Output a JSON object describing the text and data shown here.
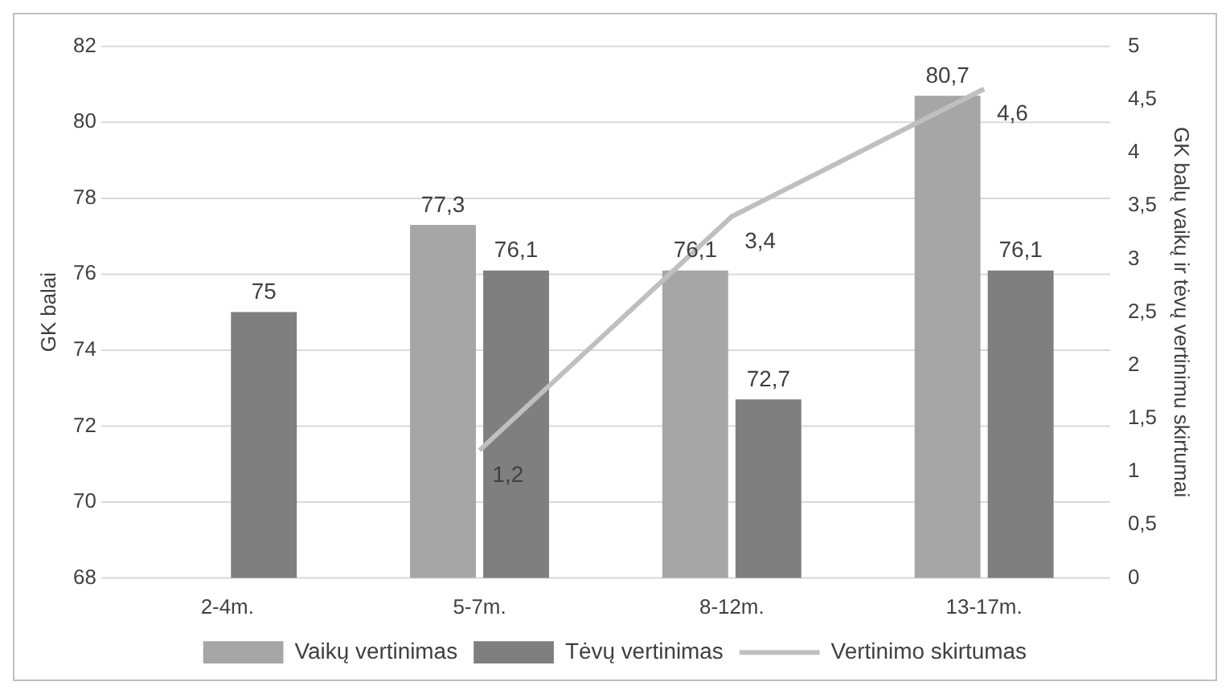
{
  "chart_data": {
    "type": "bar",
    "categories": [
      "2-4m.",
      "5-7m.",
      "8-12m.",
      "13-17m."
    ],
    "series": [
      {
        "name": "Vaikų vertinimas",
        "color": "#a6a6a6",
        "values": [
          null,
          77.3,
          76.1,
          80.7
        ],
        "value_labels": [
          null,
          "77,3",
          "76,1",
          "80,7"
        ]
      },
      {
        "name": "Tėvų vertinimas",
        "color": "#7f7f7f",
        "values": [
          75,
          76.1,
          72.7,
          76.1
        ],
        "value_labels": [
          "75",
          "76,1",
          "72,7",
          "76,1"
        ]
      },
      {
        "name": "Vertinimo skirtumas",
        "type": "line",
        "axis": "y2",
        "color": "#bfbfbf",
        "values": [
          null,
          1.2,
          3.4,
          4.6
        ],
        "value_labels": [
          null,
          "1,2",
          "3,4",
          "4,6"
        ]
      }
    ],
    "ylabel": "GK balai",
    "y2label": "GK balų vaikų ir tėvų vertinimu skirtumai",
    "ylim": [
      68,
      82
    ],
    "yticks": [
      68,
      70,
      72,
      74,
      76,
      78,
      80,
      82
    ],
    "y2lim": [
      0,
      5
    ],
    "y2ticks": [
      0,
      {
        "value": 0.5,
        "label": "0,5"
      },
      1,
      {
        "value": 1.5,
        "label": "1,5"
      },
      2,
      {
        "value": 2.5,
        "label": "2,5"
      },
      3,
      {
        "value": 3.5,
        "label": "3,5"
      },
      4,
      {
        "value": 4.5,
        "label": "4,5"
      },
      5
    ],
    "grid": "y",
    "legend": "bottom",
    "marker": "none",
    "line_style": "solid"
  }
}
